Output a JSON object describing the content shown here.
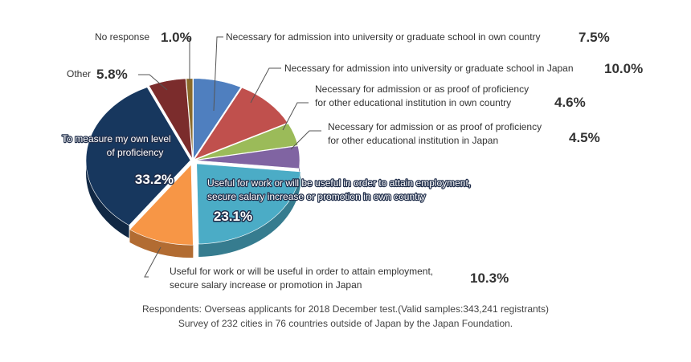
{
  "chart_data": {
    "type": "pie",
    "style": "3d-exploded",
    "slices": [
      {
        "label": "Necessary for admission into university or graduate school in own country",
        "value": 7.5,
        "display": "7.5%",
        "color": "#4f7fbf"
      },
      {
        "label": "Necessary for admission into university or graduate school in Japan",
        "value": 10.0,
        "display": "10.0%",
        "color": "#c0504d"
      },
      {
        "label": "Necessary for admission or as proof of proficiency for other educational institution in own country",
        "value": 4.6,
        "display": "4.6%",
        "color": "#9bbb59"
      },
      {
        "label": "Necessary for admission or as proof of proficiency for other educational institution in Japan",
        "value": 4.5,
        "display": "4.5%",
        "color": "#8064a2"
      },
      {
        "label": "Useful for work or will be useful in order to attain employment, secure salary increase or promotion in own country",
        "value": 23.1,
        "display": "23.1%",
        "color": "#4bacc6"
      },
      {
        "label": "Useful for work or will be useful in order to attain employment, secure salary increase or promotion in Japan",
        "value": 10.3,
        "display": "10.3%",
        "color": "#f79646"
      },
      {
        "label": "To measure my own level of proficiency",
        "value": 33.2,
        "display": "33.2%",
        "color": "#17375e"
      },
      {
        "label": "Other",
        "value": 5.8,
        "display": "5.8%",
        "color": "#7b2c2c"
      },
      {
        "label": "No response",
        "value": 1.0,
        "display": "1.0%",
        "color": "#8a6a2a"
      }
    ]
  },
  "labels": {
    "s0_line1": "Necessary for admission into university or graduate school in own country",
    "s1_line1": "Necessary for admission into university or graduate school in Japan",
    "s2_line1": "Necessary for admission or as proof of proficiency",
    "s2_line2": "for other educational institution in own country",
    "s3_line1": "Necessary for admission or as proof of proficiency",
    "s3_line2": "for other educational institution in Japan",
    "s4_line1": "Useful for work or will be useful in order to attain employment,",
    "s4_line2": "secure salary increase or promotion in own country",
    "s5_line1": "Useful for work or will be useful in order to attain employment,",
    "s5_line2": "secure salary increase or promotion in Japan",
    "s6_line1": "To measure my own level",
    "s6_line2": "of proficiency",
    "s7_line1": "Other",
    "s8_line1": "No response"
  },
  "footnote": {
    "line1": "Respondents: Overseas applicants for 2018 December test.(Valid samples:343,241 registrants)",
    "line2": "Survey of 232 cities in 76 countries outside of Japan by the Japan Foundation."
  }
}
